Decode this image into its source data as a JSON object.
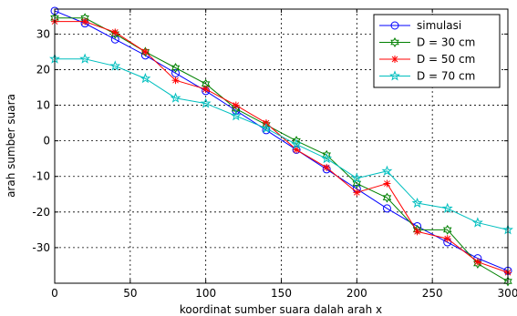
{
  "chart_data": {
    "type": "line",
    "title": "",
    "xlabel": "koordinat sumber suara dalah arah x",
    "ylabel": "arah sumber suara",
    "xlim": [
      0,
      300
    ],
    "ylim": [
      -40,
      37
    ],
    "x_ticks": [
      0,
      50,
      100,
      150,
      200,
      250,
      300
    ],
    "y_ticks": [
      30,
      20,
      10,
      0,
      -10,
      -20,
      -30
    ],
    "grid": true,
    "legend_position": "top-right",
    "series": [
      {
        "name": "simulasi",
        "color": "#0000ff",
        "marker": "circle",
        "x": [
          0,
          20,
          40,
          60,
          80,
          100,
          120,
          140,
          160,
          180,
          200,
          220,
          240,
          260,
          280,
          300
        ],
        "y": [
          36.5,
          33,
          28.5,
          24,
          19,
          14,
          8.5,
          3,
          -2.5,
          -8,
          -13.5,
          -19,
          -24,
          -28.5,
          -33,
          -36.5
        ]
      },
      {
        "name": "D = 30 cm",
        "color": "#008000",
        "marker": "hexagram",
        "x": [
          0,
          20,
          40,
          60,
          80,
          100,
          120,
          140,
          160,
          180,
          200,
          220,
          240,
          260,
          280,
          300
        ],
        "y": [
          34.5,
          34.5,
          30,
          25,
          20.5,
          16,
          9,
          4.5,
          0,
          -4,
          -12,
          -16,
          -25,
          -25,
          -34.5,
          -39.5
        ]
      },
      {
        "name": "D = 50 cm",
        "color": "#ff0000",
        "marker": "asterisk",
        "x": [
          0,
          20,
          40,
          60,
          80,
          100,
          120,
          140,
          160,
          180,
          200,
          220,
          240,
          260,
          280,
          300
        ],
        "y": [
          33.5,
          33.5,
          30.5,
          25,
          17,
          14.5,
          10,
          5,
          -2.5,
          -7.5,
          -14.5,
          -12,
          -25.5,
          -27.5,
          -34,
          -37
        ]
      },
      {
        "name": "D = 70 cm",
        "color": "#00bfbf",
        "marker": "pentagram",
        "x": [
          0,
          20,
          40,
          60,
          80,
          100,
          120,
          140,
          160,
          180,
          200,
          220,
          240,
          260,
          280,
          300
        ],
        "y": [
          23,
          23,
          21,
          17.5,
          12,
          10.5,
          7,
          3.5,
          -1,
          -5,
          -10.5,
          -8.5,
          -17.5,
          -19,
          -23,
          -25
        ]
      }
    ]
  }
}
